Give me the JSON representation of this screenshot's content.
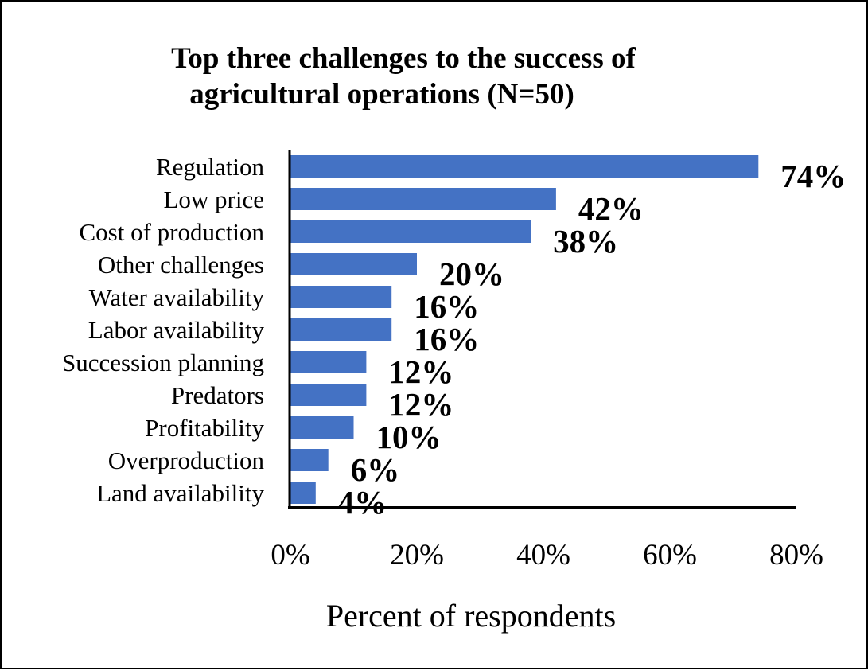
{
  "chart_data": {
    "type": "bar",
    "orientation": "horizontal",
    "title": "Top three challenges to the success of agricultural operations (N=50)",
    "title_lines": [
      "Top three challenges to the success of",
      "agricultural operations (N=50)"
    ],
    "xlabel": "Percent of respondents",
    "ylabel": "",
    "categories": [
      "Regulation",
      "Low price",
      "Cost of production",
      "Other challenges",
      "Water availability",
      "Labor availability",
      "Succession planning",
      "Predators",
      "Profitability",
      "Overproduction",
      "Land availability"
    ],
    "values": [
      74,
      42,
      38,
      20,
      16,
      16,
      12,
      12,
      10,
      6,
      4
    ],
    "value_labels": [
      "74%",
      "42%",
      "38%",
      "20%",
      "16%",
      "16%",
      "12%",
      "12%",
      "10%",
      "6%",
      "4%"
    ],
    "xlim": [
      0,
      80
    ],
    "ticks": [
      0,
      20,
      40,
      60,
      80
    ],
    "tick_labels": [
      "0%",
      "20%",
      "40%",
      "60%",
      "80%"
    ],
    "bar_color": "#4472C4",
    "grid": false,
    "legend": "none"
  }
}
